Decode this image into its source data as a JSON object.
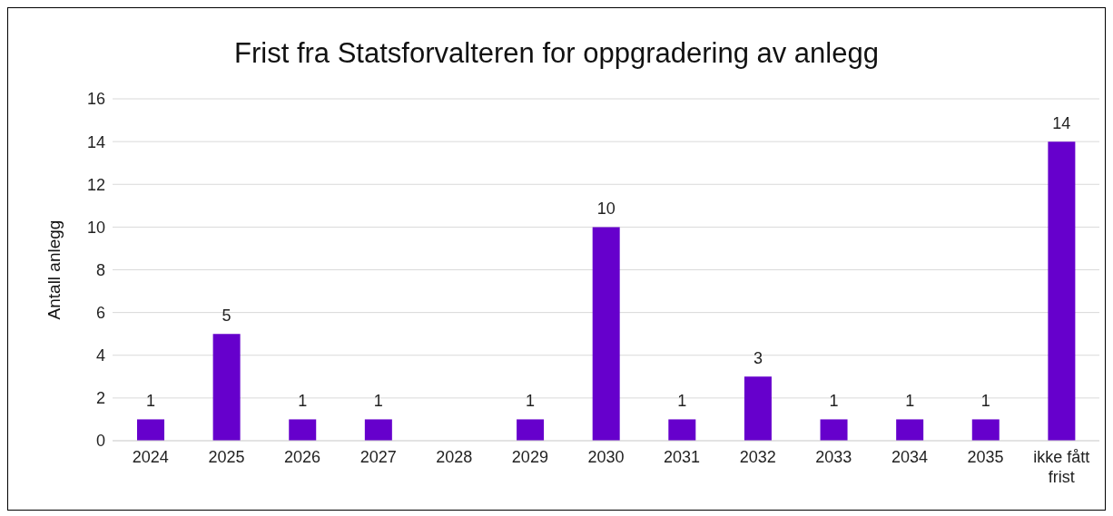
{
  "chart_data": {
    "type": "bar",
    "title": "Frist fra Statsforvalteren for oppgradering av anlegg",
    "ylabel": "Antall anlegg",
    "categories": [
      "2024",
      "2025",
      "2026",
      "2027",
      "2028",
      "2029",
      "2030",
      "2031",
      "2032",
      "2033",
      "2034",
      "2035",
      "ikke fått frist"
    ],
    "values": [
      1,
      5,
      1,
      1,
      null,
      1,
      10,
      1,
      3,
      1,
      1,
      1,
      14
    ],
    "color": "#6600cc",
    "ylim": [
      0,
      16
    ],
    "yticks": [
      0,
      2,
      4,
      6,
      8,
      10,
      12,
      14,
      16
    ],
    "grid": "y",
    "data_labels": true
  }
}
